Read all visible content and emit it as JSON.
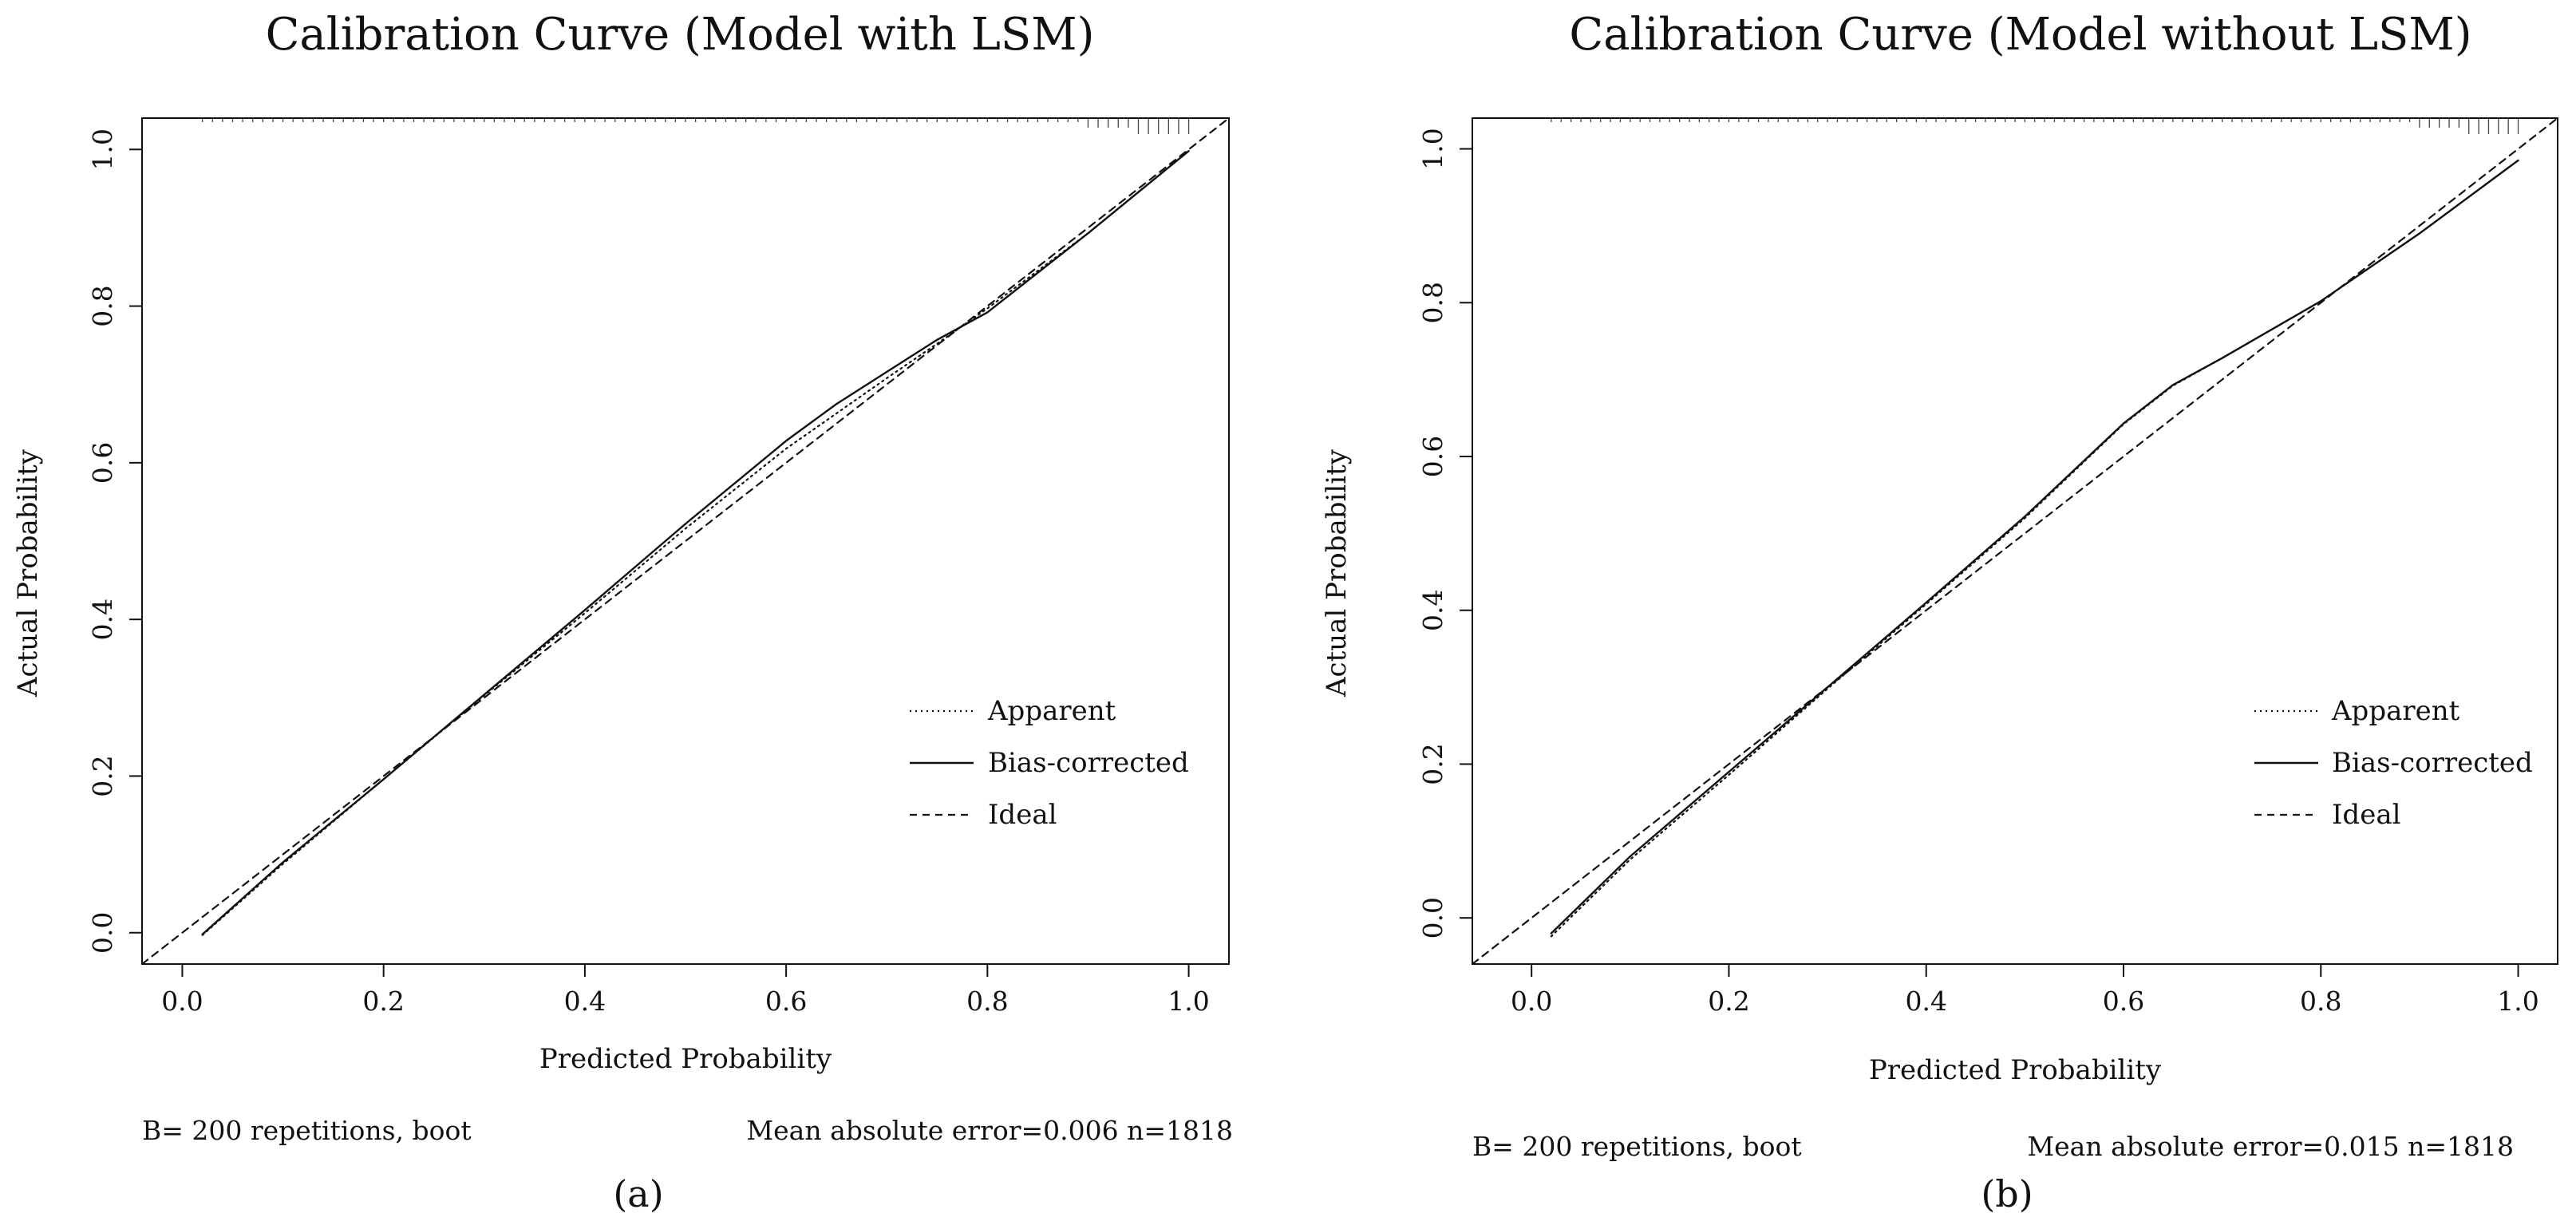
{
  "chart_data": [
    {
      "type": "line",
      "title": "Calibration Curve (Model with LSM)",
      "xlabel": "Predicted Probability",
      "ylabel": "Actual Probability",
      "xlim": [
        -0.04,
        1.04
      ],
      "ylim": [
        -0.04,
        1.04
      ],
      "xticks": [
        "0.0",
        "0.2",
        "0.4",
        "0.6",
        "0.8",
        "1.0"
      ],
      "yticks": [
        "0.0",
        "0.2",
        "0.4",
        "0.6",
        "0.8",
        "1.0"
      ],
      "grid": false,
      "legend_position": "bottom-right",
      "legend": [
        "Apparent",
        "Bias-corrected",
        "Ideal"
      ],
      "series": [
        {
          "name": "Apparent",
          "style": "dotted",
          "x": [
            0.02,
            0.1,
            0.2,
            0.3,
            0.4,
            0.5,
            0.6,
            0.7,
            0.75,
            0.8,
            0.9,
            1.0
          ],
          "y": [
            -0.003,
            0.088,
            0.196,
            0.303,
            0.408,
            0.516,
            0.618,
            0.708,
            0.752,
            0.797,
            0.893,
            0.998
          ]
        },
        {
          "name": "Bias-corrected",
          "style": "solid",
          "x": [
            0.02,
            0.1,
            0.2,
            0.3,
            0.4,
            0.5,
            0.6,
            0.65,
            0.7,
            0.75,
            0.8,
            0.9,
            1.0
          ],
          "y": [
            -0.002,
            0.09,
            0.196,
            0.304,
            0.412,
            0.522,
            0.628,
            0.675,
            0.716,
            0.757,
            0.792,
            0.893,
            0.998
          ]
        },
        {
          "name": "Ideal",
          "style": "dashed",
          "x": [
            -0.04,
            1.04
          ],
          "y": [
            -0.04,
            1.04
          ]
        }
      ],
      "footer_left": "B= 200 repetitions, boot",
      "footer_right": "Mean absolute error=0.006 n=1818",
      "panel_label": "(a)"
    },
    {
      "type": "line",
      "title": "Calibration Curve (Model without LSM)",
      "xlabel": "Predicted Probability",
      "ylabel": "Actual Probability",
      "xlim": [
        -0.06,
        1.04
      ],
      "ylim": [
        -0.06,
        1.04
      ],
      "xticks": [
        "0.0",
        "0.2",
        "0.4",
        "0.6",
        "0.8",
        "1.0"
      ],
      "yticks": [
        "0.0",
        "0.2",
        "0.4",
        "0.6",
        "0.8",
        "1.0"
      ],
      "grid": false,
      "legend_position": "bottom-right",
      "legend": [
        "Apparent",
        "Bias-corrected",
        "Ideal"
      ],
      "series": [
        {
          "name": "Apparent",
          "style": "dotted",
          "x": [
            0.02,
            0.1,
            0.2,
            0.3,
            0.4,
            0.5,
            0.6,
            0.65,
            0.7,
            0.8,
            0.9,
            1.0
          ],
          "y": [
            -0.024,
            0.076,
            0.186,
            0.298,
            0.408,
            0.52,
            0.642,
            0.692,
            0.728,
            0.802,
            0.89,
            0.985
          ]
        },
        {
          "name": "Bias-corrected",
          "style": "solid",
          "x": [
            0.02,
            0.1,
            0.2,
            0.3,
            0.4,
            0.5,
            0.6,
            0.65,
            0.7,
            0.8,
            0.9,
            1.0
          ],
          "y": [
            -0.02,
            0.08,
            0.19,
            0.3,
            0.41,
            0.522,
            0.643,
            0.693,
            0.728,
            0.802,
            0.89,
            0.985
          ]
        },
        {
          "name": "Ideal",
          "style": "dashed",
          "x": [
            -0.06,
            1.04
          ],
          "y": [
            -0.06,
            1.04
          ]
        }
      ],
      "footer_left": "B= 200 repetitions, boot",
      "footer_right": "Mean absolute error=0.015 n=1818",
      "panel_label": "(b)"
    }
  ]
}
